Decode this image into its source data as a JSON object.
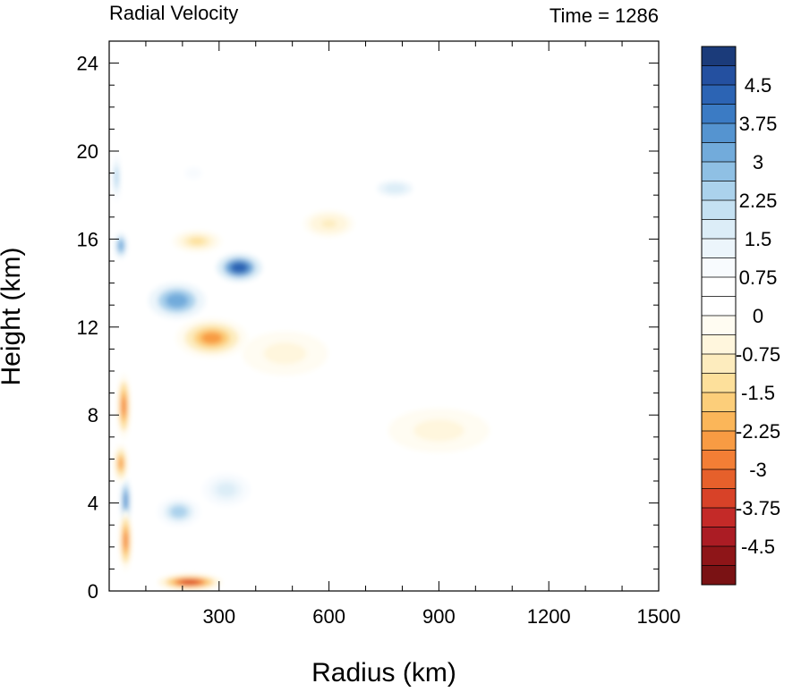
{
  "chart_data": {
    "type": "heatmap",
    "title_left": "Radial Velocity",
    "title_right": "Time = 1286",
    "xlabel": "Radius (km)",
    "ylabel": "Height (km)",
    "xlim": [
      0,
      1500
    ],
    "ylim": [
      0,
      25
    ],
    "xticks": [
      300,
      600,
      900,
      1200,
      1500
    ],
    "yticks": [
      0,
      4,
      8,
      12,
      16,
      20,
      24
    ],
    "colorbar": {
      "min": -5.25,
      "max": 5.25,
      "step": 0.375,
      "tick_values": [
        4.5,
        3.75,
        3,
        2.25,
        1.5,
        0.75,
        0,
        -0.75,
        -1.5,
        -2.25,
        -3,
        -3.75,
        -4.5
      ],
      "tick_labels": [
        "4.5",
        "3.75",
        "3",
        "2.25",
        "1.5",
        "0.75",
        "0",
        "-0.75",
        "-1.5",
        "-2.25",
        "-3",
        "-3.75",
        "-4.5"
      ],
      "colors": [
        "#1b3b7a",
        "#2450a0",
        "#2c64b4",
        "#3b7bc4",
        "#5594d0",
        "#72abdb",
        "#8fc0e4",
        "#abd2ec",
        "#c5e1f2",
        "#dcedf7",
        "#ecf5fb",
        "#f8fbfe",
        "#ffffff",
        "#ffffff",
        "#fffcf2",
        "#fff6dd",
        "#fdecbe",
        "#fde09b",
        "#fcce7a",
        "#fbb659",
        "#f89b43",
        "#f37e35",
        "#e6602b",
        "#d84228",
        "#c42a28",
        "#ab1c24",
        "#8e1518",
        "#7a1214"
      ]
    },
    "features": [
      {
        "r": 355,
        "z": 14.7,
        "v": 5.2
      },
      {
        "r": 185,
        "z": 13.2,
        "v": 3.8
      },
      {
        "r": 280,
        "z": 11.5,
        "v": -3.0
      },
      {
        "r": 240,
        "z": 15.9,
        "v": -1.8
      },
      {
        "r": 600,
        "z": 16.7,
        "v": -1.2
      },
      {
        "r": 780,
        "z": 18.3,
        "v": 2.0
      },
      {
        "r": 230,
        "z": 19.0,
        "v": 1.0
      },
      {
        "r": 320,
        "z": 4.6,
        "v": 2.2
      },
      {
        "r": 190,
        "z": 3.6,
        "v": 3.0
      },
      {
        "r": 45,
        "z": 4.1,
        "v": 4.4
      },
      {
        "r": 45,
        "z": 2.3,
        "v": -3.7
      },
      {
        "r": 32,
        "z": 5.8,
        "v": -3.0
      },
      {
        "r": 40,
        "z": 8.4,
        "v": -3.5
      },
      {
        "r": 220,
        "z": 0.4,
        "v": -4.6
      },
      {
        "r": 32,
        "z": 15.7,
        "v": 3.8
      },
      {
        "r": 20,
        "z": 18.8,
        "v": 3.0
      },
      {
        "r": 900,
        "z": 7.3,
        "v": -0.8
      },
      {
        "r": 480,
        "z": 10.8,
        "v": -0.9
      }
    ]
  }
}
